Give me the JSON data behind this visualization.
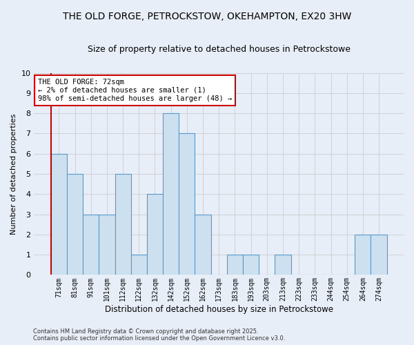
{
  "title": "THE OLD FORGE, PETROCKSTOW, OKEHAMPTON, EX20 3HW",
  "subtitle": "Size of property relative to detached houses in Petrockstowe",
  "xlabel": "Distribution of detached houses by size in Petrockstowe",
  "ylabel": "Number of detached properties",
  "categories": [
    "71sqm",
    "81sqm",
    "91sqm",
    "101sqm",
    "112sqm",
    "122sqm",
    "132sqm",
    "142sqm",
    "152sqm",
    "162sqm",
    "173sqm",
    "183sqm",
    "193sqm",
    "203sqm",
    "213sqm",
    "223sqm",
    "233sqm",
    "244sqm",
    "254sqm",
    "264sqm",
    "274sqm"
  ],
  "values": [
    6,
    5,
    3,
    3,
    5,
    1,
    4,
    8,
    7,
    3,
    0,
    1,
    1,
    0,
    1,
    0,
    0,
    0,
    0,
    2,
    2
  ],
  "bar_color": "#cce0f0",
  "bar_edge_color": "#5599cc",
  "highlight_line_color": "#cc0000",
  "annotation_line1": "THE OLD FORGE: 72sqm",
  "annotation_line2": "← 2% of detached houses are smaller (1)",
  "annotation_line3": "98% of semi-detached houses are larger (48) →",
  "annotation_box_color": "#ffffff",
  "annotation_box_edge_color": "#cc0000",
  "ylim": [
    0,
    10
  ],
  "yticks": [
    0,
    1,
    2,
    3,
    4,
    5,
    6,
    7,
    8,
    9,
    10
  ],
  "grid_color": "#cccccc",
  "background_color": "#e8eef8",
  "footer_line1": "Contains HM Land Registry data © Crown copyright and database right 2025.",
  "footer_line2": "Contains public sector information licensed under the Open Government Licence v3.0.",
  "title_fontsize": 10,
  "subtitle_fontsize": 9,
  "annotation_fontsize": 7.5,
  "ylabel_fontsize": 8,
  "xlabel_fontsize": 8.5
}
